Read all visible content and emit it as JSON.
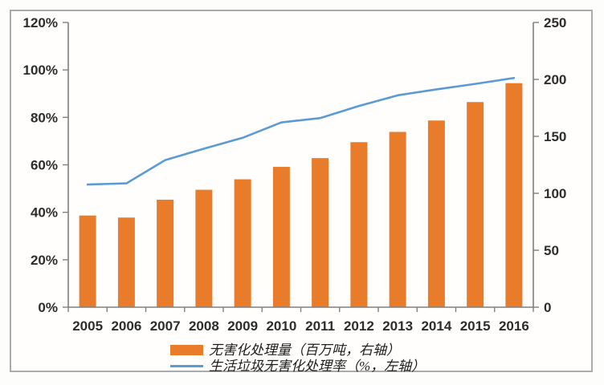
{
  "chart_data": {
    "type": "combo",
    "title": "",
    "categories": [
      "2005",
      "2006",
      "2007",
      "2008",
      "2009",
      "2010",
      "2011",
      "2012",
      "2013",
      "2014",
      "2015",
      "2016"
    ],
    "series": [
      {
        "name": "无害化处理量",
        "type": "bar",
        "axis": "right",
        "unit": "百万吨",
        "legend_label": "无害化处理量（百万吨，右轴）",
        "color": "#E97C2A",
        "values": [
          80.5,
          78.7,
          94.4,
          103.1,
          112.3,
          123.2,
          130.9,
          144.9,
          153.9,
          163.9,
          180.1,
          196.7
        ]
      },
      {
        "name": "生活垃圾无害化处理率",
        "type": "line",
        "axis": "left",
        "unit": "%",
        "legend_label": "生活垃圾无害化处理率（%，左轴）",
        "color": "#5B9BD5",
        "values": [
          51.7,
          52.2,
          62.0,
          66.8,
          71.4,
          77.9,
          79.7,
          84.8,
          89.3,
          91.8,
          94.1,
          96.6
        ]
      }
    ],
    "left_axis": {
      "min": 0,
      "max": 120,
      "tick_values": [
        0,
        20,
        40,
        60,
        80,
        100,
        120
      ],
      "tick_labels": [
        "0%",
        "20%",
        "40%",
        "60%",
        "80%",
        "100%",
        "120%"
      ]
    },
    "right_axis": {
      "min": 0,
      "max": 250,
      "tick_values": [
        0,
        50,
        100,
        150,
        200,
        250
      ],
      "tick_labels": [
        "0",
        "50",
        "100",
        "150",
        "200",
        "250"
      ]
    },
    "grid": false,
    "legend_position": "bottom",
    "axis_color": "#7F7F7F",
    "label_color": "#2D2D2D"
  }
}
